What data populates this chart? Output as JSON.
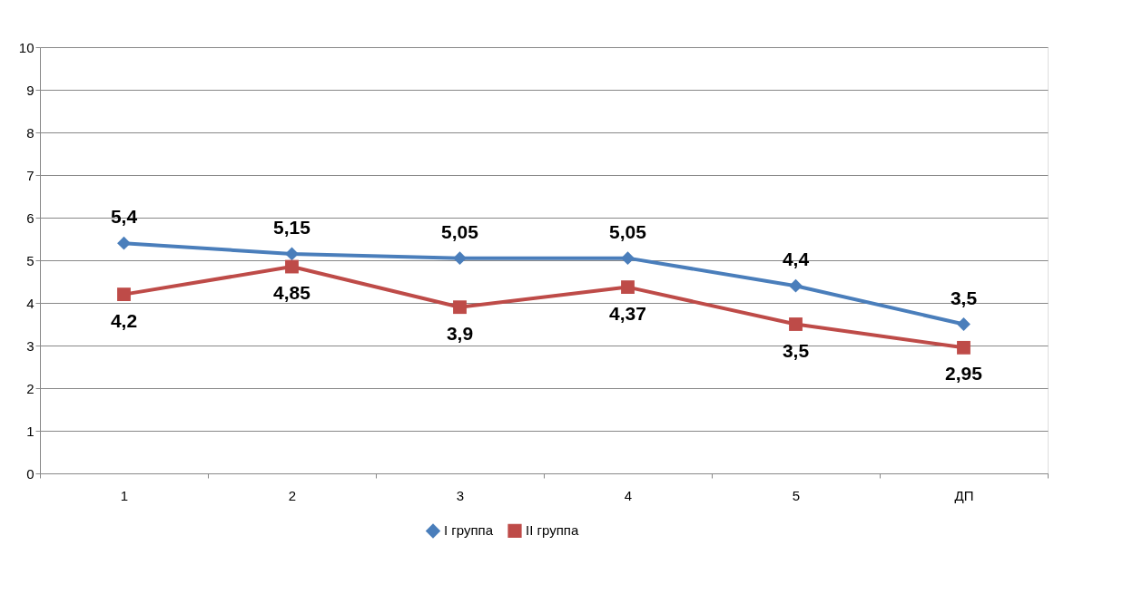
{
  "chart_data": {
    "type": "line",
    "categories": [
      "1",
      "2",
      "3",
      "4",
      "5",
      "ДП"
    ],
    "series": [
      {
        "name": "I группа",
        "color": "#4a7ebb",
        "marker": "diamond",
        "values": [
          5.4,
          5.15,
          5.05,
          5.05,
          4.4,
          3.5
        ],
        "value_labels": [
          "5,4",
          "5,15",
          "5,05",
          "5,05",
          "4,4",
          "3,5"
        ]
      },
      {
        "name": "II группа",
        "color": "#be4b48",
        "marker": "square",
        "values": [
          4.2,
          4.85,
          3.9,
          4.37,
          3.5,
          2.95
        ],
        "value_labels": [
          "4,2",
          "4,85",
          "3,9",
          "4,37",
          "3,5",
          "2,95"
        ]
      }
    ],
    "ylim": [
      0,
      10
    ],
    "yticks": [
      0,
      1,
      2,
      3,
      4,
      5,
      6,
      7,
      8,
      9,
      10
    ],
    "grid": "y",
    "legend": "bottom",
    "line_style": "solid"
  }
}
